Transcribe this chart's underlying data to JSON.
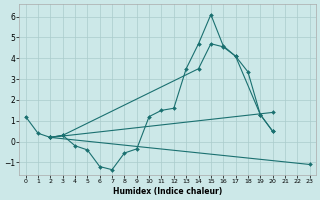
{
  "background_color": "#cce8e8",
  "grid_color": "#aacccc",
  "line_color": "#1a7070",
  "xlabel": "Humidex (Indice chaleur)",
  "xlim": [
    -0.5,
    23.5
  ],
  "ylim": [
    -1.6,
    6.6
  ],
  "xticks": [
    0,
    1,
    2,
    3,
    4,
    5,
    6,
    7,
    8,
    9,
    10,
    11,
    12,
    13,
    14,
    15,
    16,
    17,
    18,
    19,
    20,
    21,
    22,
    23
  ],
  "yticks": [
    -1,
    0,
    1,
    2,
    3,
    4,
    5,
    6
  ],
  "series": [
    {
      "x": [
        0,
        1,
        2,
        3,
        4,
        5,
        6,
        7,
        8,
        9,
        10,
        11,
        12,
        13,
        14,
        15,
        16,
        17,
        18,
        19,
        20
      ],
      "y": [
        1.2,
        0.4,
        0.2,
        0.3,
        -0.2,
        -0.4,
        -1.2,
        -1.35,
        -0.55,
        -0.35,
        1.2,
        1.5,
        1.6,
        3.5,
        4.7,
        6.1,
        4.6,
        4.1,
        3.35,
        1.3,
        0.5
      ]
    },
    {
      "comment": "second line: from (2,0.2) fans up, hits (15,4.7), (16,4.55), (17,4.1), then drops to (19,1.3), (20,0.5)",
      "x": [
        2,
        3,
        14,
        15,
        16,
        17,
        19,
        20
      ],
      "y": [
        0.2,
        0.3,
        3.5,
        4.7,
        4.55,
        4.1,
        1.3,
        0.5
      ]
    },
    {
      "x": [
        2,
        20
      ],
      "y": [
        0.2,
        1.4
      ]
    },
    {
      "x": [
        2,
        23
      ],
      "y": [
        0.2,
        -1.1
      ]
    }
  ],
  "marker": "D",
  "markersize": 2.0,
  "linewidth": 0.8,
  "xlabel_fontsize": 5.5,
  "xtick_fontsize": 4.5,
  "ytick_fontsize": 5.5
}
